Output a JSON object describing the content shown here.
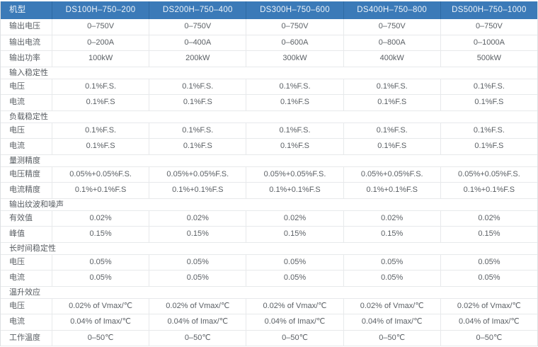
{
  "table": {
    "header": {
      "label": "机型",
      "models": [
        "DS100H–750–200",
        "DS200H–750–400",
        "DS300H–750–600",
        "DS400H–750–800",
        "DS500H–750–1000"
      ]
    },
    "rows": [
      {
        "type": "data",
        "label": "输出电压",
        "values": [
          "0–750V",
          "0–750V",
          "0–750V",
          "0–750V",
          "0–750V"
        ]
      },
      {
        "type": "data",
        "label": "输出电流",
        "values": [
          "0–200A",
          "0–400A",
          "0–600A",
          "0–800A",
          "0–1000A"
        ]
      },
      {
        "type": "data",
        "label": "输出功率",
        "values": [
          "100kW",
          "200kW",
          "300kW",
          "400kW",
          "500kW"
        ]
      },
      {
        "type": "section",
        "label": "输入稳定性"
      },
      {
        "type": "data",
        "label": "电压",
        "values": [
          "0.1%F.S.",
          "0.1%F.S.",
          "0.1%F.S.",
          "0.1%F.S.",
          "0.1%F.S."
        ]
      },
      {
        "type": "data",
        "label": "电流",
        "values": [
          "0.1%F.S",
          "0.1%F.S",
          "0.1%F.S",
          "0.1%F.S",
          "0.1%F.S"
        ]
      },
      {
        "type": "section",
        "label": "负载稳定性"
      },
      {
        "type": "data",
        "label": "电压",
        "values": [
          "0.1%F.S.",
          "0.1%F.S.",
          "0.1%F.S.",
          "0.1%F.S.",
          "0.1%F.S."
        ]
      },
      {
        "type": "data",
        "label": "电流",
        "values": [
          "0.1%F.S",
          "0.1%F.S",
          "0.1%F.S",
          "0.1%F.S",
          "0.1%F.S"
        ]
      },
      {
        "type": "section",
        "label": "量测精度"
      },
      {
        "type": "data",
        "label": "电压精度",
        "values": [
          "0.05%+0.05%F.S.",
          "0.05%+0.05%F.S.",
          "0.05%+0.05%F.S.",
          "0.05%+0.05%F.S.",
          "0.05%+0.05%F.S."
        ]
      },
      {
        "type": "data",
        "label": "电流精度",
        "values": [
          "0.1%+0.1%F.S",
          "0.1%+0.1%F.S",
          "0.1%+0.1%F.S",
          "0.1%+0.1%F.S",
          "0.1%+0.1%F.S"
        ]
      },
      {
        "type": "section",
        "label": "输出纹波和噪声"
      },
      {
        "type": "data",
        "label": "有效值",
        "values": [
          "0.02%",
          "0.02%",
          "0.02%",
          "0.02%",
          "0.02%"
        ]
      },
      {
        "type": "data",
        "label": "峰值",
        "values": [
          "0.15%",
          "0.15%",
          "0.15%",
          "0.15%",
          "0.15%"
        ]
      },
      {
        "type": "section",
        "label": "长时间稳定性"
      },
      {
        "type": "data",
        "label": "电压",
        "values": [
          "0.05%",
          "0.05%",
          "0.05%",
          "0.05%",
          "0.05%"
        ]
      },
      {
        "type": "data",
        "label": "电流",
        "values": [
          "0.05%",
          "0.05%",
          "0.05%",
          "0.05%",
          "0.05%"
        ]
      },
      {
        "type": "section",
        "label": "温升效应"
      },
      {
        "type": "data",
        "label": "电压",
        "values": [
          "0.02% of Vmax/℃",
          "0.02% of Vmax/℃",
          "0.02% of Vmax/℃",
          "0.02% of Vmax/℃",
          "0.02% of Vmax/℃"
        ]
      },
      {
        "type": "data",
        "label": "电流",
        "values": [
          "0.04% of Imax/℃",
          "0.04% of Imax/℃",
          "0.04% of Imax/℃",
          "0.04% of Imax/℃",
          "0.04% of Imax/℃"
        ]
      },
      {
        "type": "data",
        "label": "工作温度",
        "values": [
          "0–50℃",
          "0–50℃",
          "0–50℃",
          "0–50℃",
          "0–50℃"
        ]
      }
    ],
    "colors": {
      "header_bg": "#3b7ab8",
      "header_divider": "#2e6aa4",
      "header_text": "#eef4fa",
      "row_border": "#e7e9eb",
      "body_text": "#5b6065"
    }
  }
}
